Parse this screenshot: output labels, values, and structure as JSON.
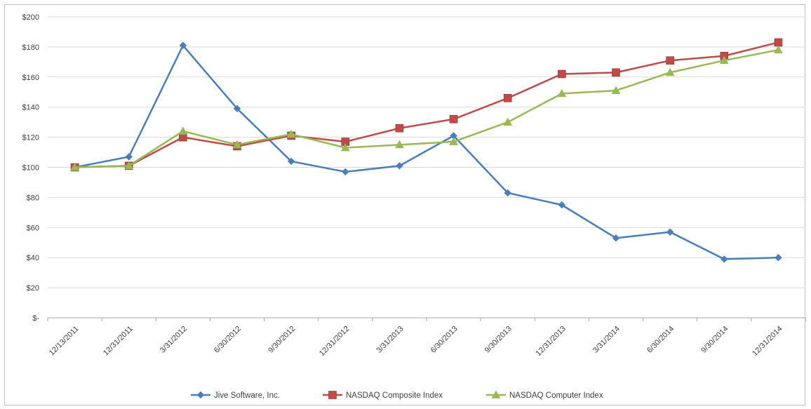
{
  "chart_data": {
    "type": "line",
    "title": "",
    "xlabel": "",
    "ylabel": "",
    "categories": [
      "12/13/2011",
      "12/31/2011",
      "3/31/2012",
      "6/30/2012",
      "9/30/2012",
      "12/31/2012",
      "3/31/2013",
      "6/30/2013",
      "9/30/2013",
      "12/31/2013",
      "3/31/2014",
      "6/30/2014",
      "9/30/2014",
      "12/31/2014"
    ],
    "ylim": [
      0,
      200
    ],
    "yticks": [
      {
        "value": 0,
        "label": "$-"
      },
      {
        "value": 20,
        "label": "$20"
      },
      {
        "value": 40,
        "label": "$40"
      },
      {
        "value": 60,
        "label": "$60"
      },
      {
        "value": 80,
        "label": "$80"
      },
      {
        "value": 100,
        "label": "$100"
      },
      {
        "value": 120,
        "label": "$120"
      },
      {
        "value": 140,
        "label": "$140"
      },
      {
        "value": 160,
        "label": "$160"
      },
      {
        "value": 180,
        "label": "$180"
      },
      {
        "value": 200,
        "label": "$200"
      }
    ],
    "grid": "horizontal",
    "legend": "bottom",
    "series": [
      {
        "name": "Jive Software, Inc.",
        "color": "#4a7ebb",
        "marker": "diamond",
        "values": [
          100,
          107,
          181,
          139,
          104,
          97,
          101,
          121,
          83,
          75,
          53,
          57,
          39,
          40
        ]
      },
      {
        "name": "NASDAQ Composite Index",
        "color": "#be4b48",
        "marker": "square",
        "values": [
          100,
          101,
          120,
          114,
          121,
          117,
          126,
          132,
          146,
          162,
          163,
          171,
          174,
          183
        ]
      },
      {
        "name": "NASDAQ Computer Index",
        "color": "#98b954",
        "marker": "triangle",
        "values": [
          100,
          101,
          124,
          115,
          122,
          113,
          115,
          117,
          130,
          149,
          151,
          163,
          171,
          178
        ]
      }
    ]
  }
}
